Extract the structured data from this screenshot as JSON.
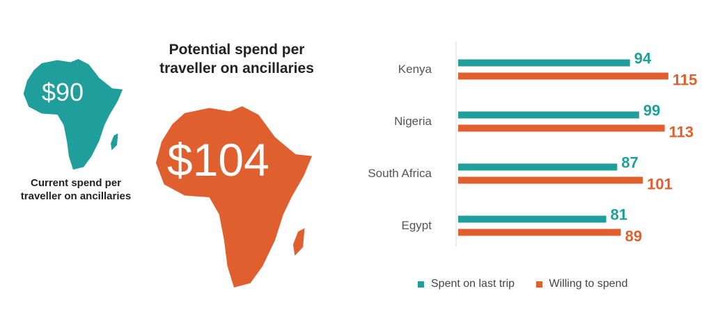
{
  "left": {
    "current_amount": "$90",
    "current_caption": "Current spend per traveller on ancillaries",
    "potential_amount": "$104",
    "potential_caption": "Potential spend per traveller on ancillaries"
  },
  "colors": {
    "teal": "#1f9e9b",
    "orange": "#e05f2e"
  },
  "chart_data": {
    "type": "bar",
    "orientation": "horizontal",
    "categories": [
      "Kenya",
      "Nigeria",
      "South Africa",
      "Egypt"
    ],
    "series": [
      {
        "name": "Spent on last trip",
        "values": [
          94,
          99,
          87,
          81
        ],
        "color": "#1f9e9b"
      },
      {
        "name": "Willing to spend",
        "values": [
          115,
          113,
          101,
          89
        ],
        "color": "#e05f2e"
      }
    ],
    "xlim": [
      0,
      120
    ],
    "grid": false,
    "legend": "bottom"
  }
}
